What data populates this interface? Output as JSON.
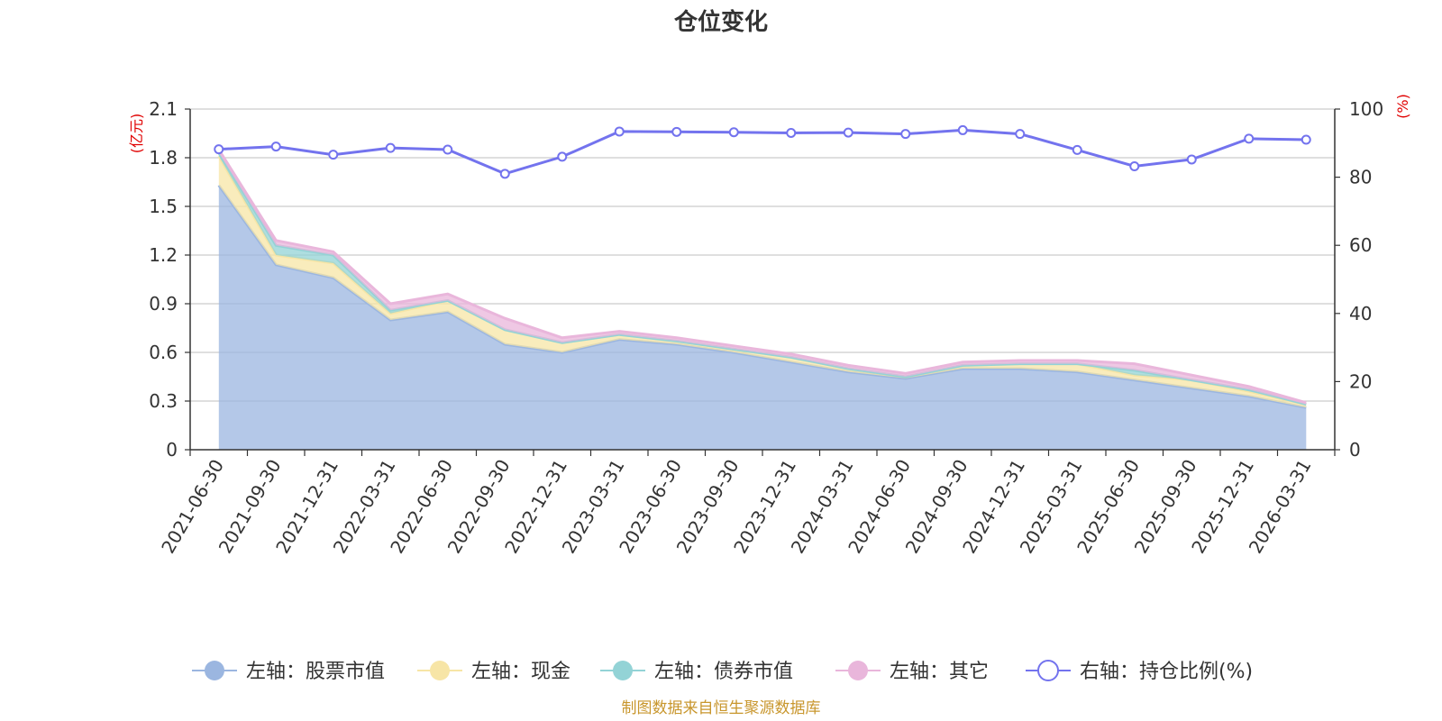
{
  "chart_data": {
    "type": "area",
    "title": "仓位变化",
    "source_note": "制图数据来自恒生聚源数据库",
    "left_axis": {
      "unit": "(亿元)",
      "ylim": [
        0,
        2.1
      ],
      "ticks": [
        "0",
        "0.3",
        "0.6",
        "0.9",
        "1.2",
        "1.5",
        "1.8",
        "2.1"
      ]
    },
    "right_axis": {
      "unit": "(%)",
      "ylim": [
        0,
        100
      ],
      "ticks": [
        "0",
        "20",
        "40",
        "60",
        "80",
        "100"
      ]
    },
    "categories": [
      "2021-06-30",
      "2021-09-30",
      "2021-12-31",
      "2022-03-31",
      "2022-06-30",
      "2022-09-30",
      "2022-12-31",
      "2023-03-31",
      "2023-06-30",
      "2023-09-30",
      "2023-12-31",
      "2024-03-31",
      "2024-06-30",
      "2024-09-30",
      "2024-12-31",
      "2025-03-31",
      "2025-06-30",
      "2025-09-30",
      "2025-12-31",
      "2026-03-31"
    ],
    "series": [
      {
        "name": "左轴：股票市值",
        "axis": "left",
        "stacked": true,
        "color": "#9bb6e0",
        "values": [
          1.63,
          1.14,
          1.06,
          0.8,
          0.85,
          0.65,
          0.6,
          0.68,
          0.65,
          0.6,
          0.54,
          0.48,
          0.44,
          0.5,
          0.5,
          0.48,
          0.43,
          0.38,
          0.33,
          0.26
        ]
      },
      {
        "name": "左轴：现金",
        "axis": "left",
        "stacked": true,
        "color": "#f7e5a6",
        "values": [
          0.18,
          0.06,
          0.09,
          0.04,
          0.07,
          0.09,
          0.06,
          0.03,
          0.02,
          0.02,
          0.03,
          0.02,
          0.01,
          0.02,
          0.03,
          0.05,
          0.03,
          0.05,
          0.03,
          0.02
        ]
      },
      {
        "name": "左轴：债券市值",
        "axis": "left",
        "stacked": true,
        "color": "#93d3d6",
        "values": [
          0.02,
          0.06,
          0.05,
          0.02,
          0.0,
          0.0,
          0.0,
          0.0,
          0.0,
          0.0,
          0.0,
          0.0,
          0.0,
          0.0,
          0.0,
          0.0,
          0.03,
          0.0,
          0.01,
          0.0
        ]
      },
      {
        "name": "左轴：其它",
        "axis": "left",
        "stacked": true,
        "color": "#e9b6db",
        "values": [
          0.02,
          0.03,
          0.02,
          0.04,
          0.04,
          0.07,
          0.03,
          0.02,
          0.02,
          0.02,
          0.02,
          0.02,
          0.02,
          0.02,
          0.02,
          0.02,
          0.04,
          0.03,
          0.02,
          0.01
        ]
      },
      {
        "name": "右轴：持仓比例(%)",
        "axis": "right",
        "stacked": false,
        "color": "#7373ee",
        "values": [
          88.2,
          89.0,
          86.6,
          88.6,
          88.1,
          81.0,
          86.0,
          93.4,
          93.3,
          93.2,
          93.0,
          93.1,
          92.7,
          93.8,
          92.7,
          88.0,
          83.2,
          85.2,
          91.3,
          91.0
        ]
      }
    ],
    "legend_position": "bottom"
  }
}
